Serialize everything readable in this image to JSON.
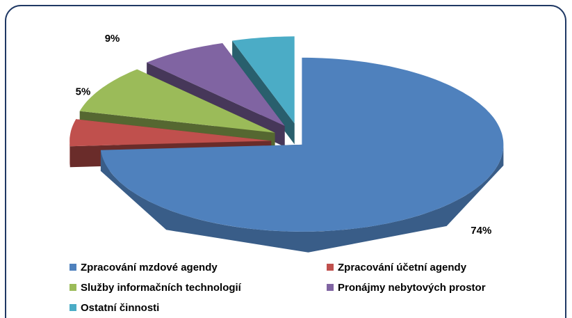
{
  "chart_data": {
    "type": "pie3d",
    "categories": [
      "Zpracování mzdové agendy",
      "Zpracování účetní agendy",
      "Služby informačních technologií",
      "Pronájmy nebytových prostor",
      "Ostatní činnosti"
    ],
    "values": [
      74,
      5,
      9,
      7,
      5
    ],
    "value_labels": [
      "74%",
      "5%",
      "9%",
      "7%",
      "5%"
    ],
    "colors": [
      "#4f81bd",
      "#c0504d",
      "#9bbb59",
      "#8064a2",
      "#4bacc6"
    ],
    "legend": "bottom"
  }
}
